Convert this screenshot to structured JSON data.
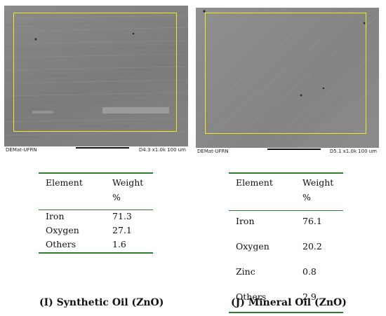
{
  "panels": [
    {
      "sem_label": "DEMat-UFRN",
      "sem_mag": "D4.3  x1.0k",
      "sem_scale": "100 um",
      "table_header": {
        "element": "Element",
        "weight": "Weight",
        "unit": "%"
      },
      "rows": [
        {
          "element": "Iron",
          "weight": "71.3"
        },
        {
          "element": "Oxygen",
          "weight": "27.1"
        },
        {
          "element": "Others",
          "weight": "1.6"
        }
      ],
      "caption": "(I) Synthetic Oil (ZnO)"
    },
    {
      "sem_label": "DEMat-UFRN",
      "sem_mag": "D5.1  x1.0k",
      "sem_scale": "100 um",
      "table_header": {
        "element": "Element",
        "weight": "Weight",
        "unit": "%"
      },
      "rows": [
        {
          "element": "Iron",
          "weight": "76.1"
        },
        {
          "element": "Oxygen",
          "weight": "20.2"
        },
        {
          "element": "Zinc",
          "weight": "0.8"
        },
        {
          "element": "Others",
          "weight": "2.9"
        }
      ],
      "caption": "(J) Mineral Oil (ZnO)"
    }
  ],
  "colors": {
    "roi_outline": "#f2e81c",
    "table_rule": "#2d7d2d"
  }
}
